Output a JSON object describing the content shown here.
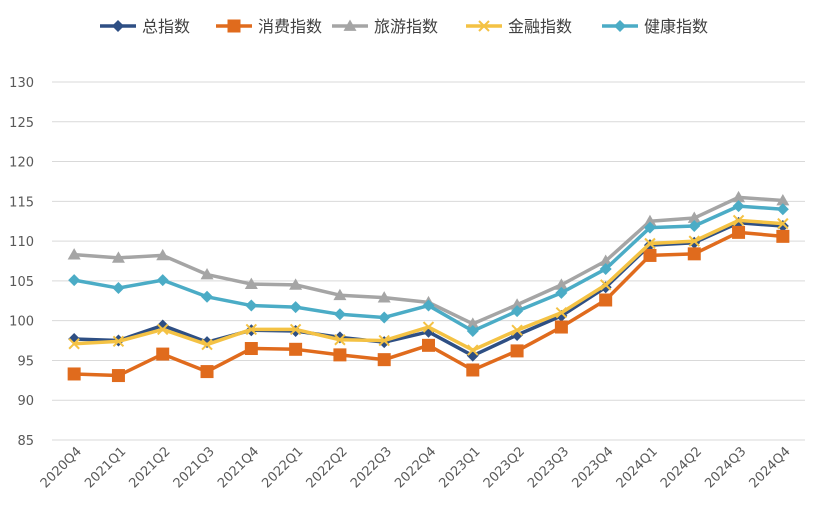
{
  "chart_data": {
    "type": "line",
    "title": "",
    "xlabel": "",
    "ylabel": "",
    "ylim": [
      85,
      130
    ],
    "yticks": [
      85,
      90,
      95,
      100,
      105,
      110,
      115,
      120,
      125,
      130
    ],
    "grid": true,
    "legend_position": "top",
    "categories": [
      "2020Q4",
      "2021Q1",
      "2021Q2",
      "2021Q3",
      "2021Q4",
      "2022Q1",
      "2022Q2",
      "2022Q3",
      "2022Q4",
      "2023Q1",
      "2023Q2",
      "2023Q3",
      "2023Q4",
      "2024Q1",
      "2024Q2",
      "2024Q3",
      "2024Q4"
    ],
    "series": [
      {
        "name": "总指数",
        "color": "#2E4F84",
        "marker": "diamond",
        "values": [
          97.7,
          97.5,
          99.4,
          97.3,
          98.8,
          98.7,
          97.9,
          97.3,
          98.6,
          95.6,
          98.2,
          100.6,
          104.2,
          109.5,
          109.8,
          112.3,
          111.9
        ]
      },
      {
        "name": "消费指数",
        "color": "#E06B1D",
        "marker": "square",
        "values": [
          93.3,
          93.1,
          95.8,
          93.6,
          96.5,
          96.4,
          95.7,
          95.1,
          96.9,
          93.8,
          96.2,
          99.2,
          102.6,
          108.2,
          108.4,
          111.1,
          110.6
        ]
      },
      {
        "name": "旅游指数",
        "color": "#A5A5A5",
        "marker": "triangle",
        "values": [
          108.3,
          107.9,
          108.2,
          105.8,
          104.6,
          104.5,
          103.2,
          102.9,
          102.3,
          99.6,
          102.0,
          104.5,
          107.5,
          112.5,
          112.9,
          115.5,
          115.1
        ]
      },
      {
        "name": "金融指数",
        "color": "#F4C244",
        "marker": "x",
        "values": [
          97.1,
          97.4,
          98.9,
          97.0,
          98.9,
          98.9,
          97.6,
          97.5,
          99.2,
          96.3,
          98.8,
          101.0,
          104.5,
          109.7,
          110.0,
          112.6,
          112.2
        ]
      },
      {
        "name": "健康指数",
        "color": "#4BACC6",
        "marker": "diamond",
        "values": [
          105.1,
          104.1,
          105.1,
          103.0,
          101.9,
          101.7,
          100.8,
          100.4,
          101.9,
          98.7,
          101.2,
          103.5,
          106.5,
          111.7,
          111.9,
          114.4,
          114.0
        ]
      }
    ]
  }
}
